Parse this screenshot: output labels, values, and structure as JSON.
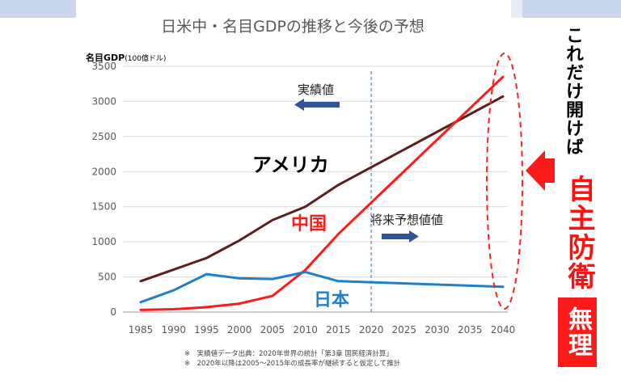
{
  "chart_data": {
    "type": "line",
    "title": "日米中・名目GDPの推移と今後の予想",
    "ylabel_main": "名目GDP",
    "ylabel_unit": "(100億ドル)",
    "ylim": [
      0,
      3500
    ],
    "yticks": [
      "0",
      "500",
      "1000",
      "1500",
      "2000",
      "2500",
      "3000",
      "3500"
    ],
    "x": [
      "1985",
      "1990",
      "1995",
      "2000",
      "2005",
      "2010",
      "2015",
      "2020",
      "2025",
      "2030",
      "2035",
      "2040"
    ],
    "grid": "horizontal",
    "series": [
      {
        "name": "アメリカ",
        "color": "#5c1f1f",
        "points": [
          [
            1985,
            440
          ],
          [
            1995,
            770
          ],
          [
            2000,
            1020
          ],
          [
            2005,
            1310
          ],
          [
            2010,
            1500
          ],
          [
            2015,
            1810
          ],
          [
            2040,
            3070
          ]
        ]
      },
      {
        "name": "中国",
        "color": "#ff1a1a",
        "points": [
          [
            1985,
            30
          ],
          [
            1990,
            40
          ],
          [
            1995,
            70
          ],
          [
            2000,
            120
          ],
          [
            2005,
            230
          ],
          [
            2010,
            600
          ],
          [
            2015,
            1110
          ],
          [
            2040,
            3350
          ]
        ]
      },
      {
        "name": "日本",
        "color": "#1f7fc8",
        "points": [
          [
            1985,
            140
          ],
          [
            1990,
            310
          ],
          [
            1995,
            540
          ],
          [
            2000,
            480
          ],
          [
            2005,
            470
          ],
          [
            2010,
            570
          ],
          [
            2015,
            440
          ],
          [
            2040,
            360
          ]
        ]
      }
    ],
    "annotations": {
      "actual_label": "実績値",
      "forecast_label": "将来予想値値",
      "divider_year": 2020,
      "highlight_year": 2040
    },
    "footnotes": [
      "※　実績値データ出典：2020年世界の統計「第3章 国民経済計算」",
      "※　2020年以降は2005～2015年の成長率が継続すると仮定して推計"
    ]
  },
  "side_message": {
    "line1": "これだけ開けば",
    "line2": "自主防衛",
    "line3": "無理",
    "colors": {
      "accent": "#ff1a1a",
      "arrow": "#ff1a1a"
    }
  }
}
